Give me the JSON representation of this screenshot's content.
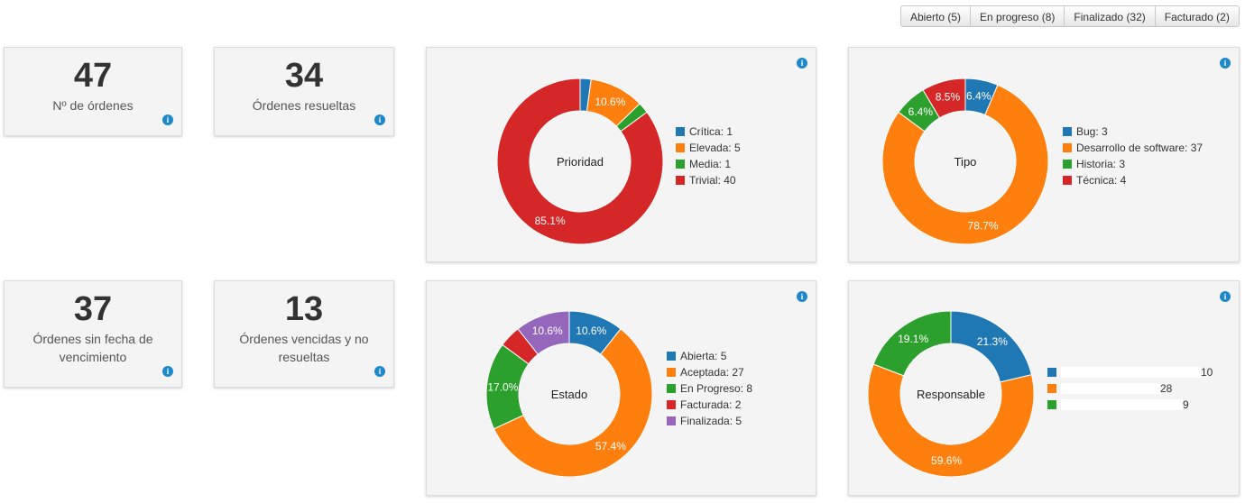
{
  "filters": [
    {
      "label": "Abierto (5)"
    },
    {
      "label": "En progreso (8)"
    },
    {
      "label": "Finalizado (32)"
    },
    {
      "label": "Facturado (2)"
    }
  ],
  "stats": [
    {
      "value": "47",
      "label": "Nº de órdenes"
    },
    {
      "value": "34",
      "label": "Órdenes resueltas"
    },
    {
      "value": "37",
      "label": "Órdenes sin fecha de vencimiento"
    },
    {
      "value": "13",
      "label": "Órdenes vencidas y no resueltas"
    }
  ],
  "colors": {
    "blue": "#1f77b4",
    "orange": "#ff7f0e",
    "green": "#2ca02c",
    "red": "#d62728",
    "purple": "#9467bd"
  },
  "chart_data": [
    {
      "type": "pie",
      "title": "Prioridad",
      "categories": [
        "Crítica",
        "Elevada",
        "Media",
        "Trivial"
      ],
      "values": [
        1,
        5,
        1,
        40
      ],
      "colors": [
        "#1f77b4",
        "#ff7f0e",
        "#2ca02c",
        "#d62728"
      ],
      "legend": [
        "Crítica: 1",
        "Elevada: 5",
        "Media: 1",
        "Trivial: 40"
      ],
      "slice_labels": [
        "",
        "10.6%",
        "",
        "85.1%"
      ],
      "donut": true
    },
    {
      "type": "pie",
      "title": "Tipo",
      "categories": [
        "Bug",
        "Desarrollo de software",
        "Historia",
        "Técnica"
      ],
      "values": [
        3,
        37,
        3,
        4
      ],
      "colors": [
        "#1f77b4",
        "#ff7f0e",
        "#2ca02c",
        "#d62728"
      ],
      "legend": [
        "Bug: 3",
        "Desarrollo de software: 37",
        "Historia: 3",
        "Técnica: 4"
      ],
      "slice_labels": [
        "6.4%",
        "78.7%",
        "6.4%",
        "8.5%"
      ],
      "donut": true
    },
    {
      "type": "pie",
      "title": "Estado",
      "categories": [
        "Abierta",
        "Aceptada",
        "En Progreso",
        "Facturada",
        "Finalizada"
      ],
      "values": [
        5,
        27,
        8,
        2,
        5
      ],
      "colors": [
        "#1f77b4",
        "#ff7f0e",
        "#2ca02c",
        "#d62728",
        "#9467bd"
      ],
      "legend": [
        "Abierta: 5",
        "Aceptada: 27",
        "En Progreso: 8",
        "Facturada: 2",
        "Finalizada: 5"
      ],
      "slice_labels": [
        "10.6%",
        "57.4%",
        "17.0%",
        "",
        "10.6%"
      ],
      "donut": true
    },
    {
      "type": "pie",
      "title": "Responsable",
      "categories": [
        "",
        "",
        ""
      ],
      "values": [
        10,
        28,
        9
      ],
      "colors": [
        "#1f77b4",
        "#ff7f0e",
        "#2ca02c"
      ],
      "legend": [
        "10",
        "28",
        "9"
      ],
      "slice_labels": [
        "21.3%",
        "59.6%",
        "19.1%"
      ],
      "donut": true
    }
  ]
}
